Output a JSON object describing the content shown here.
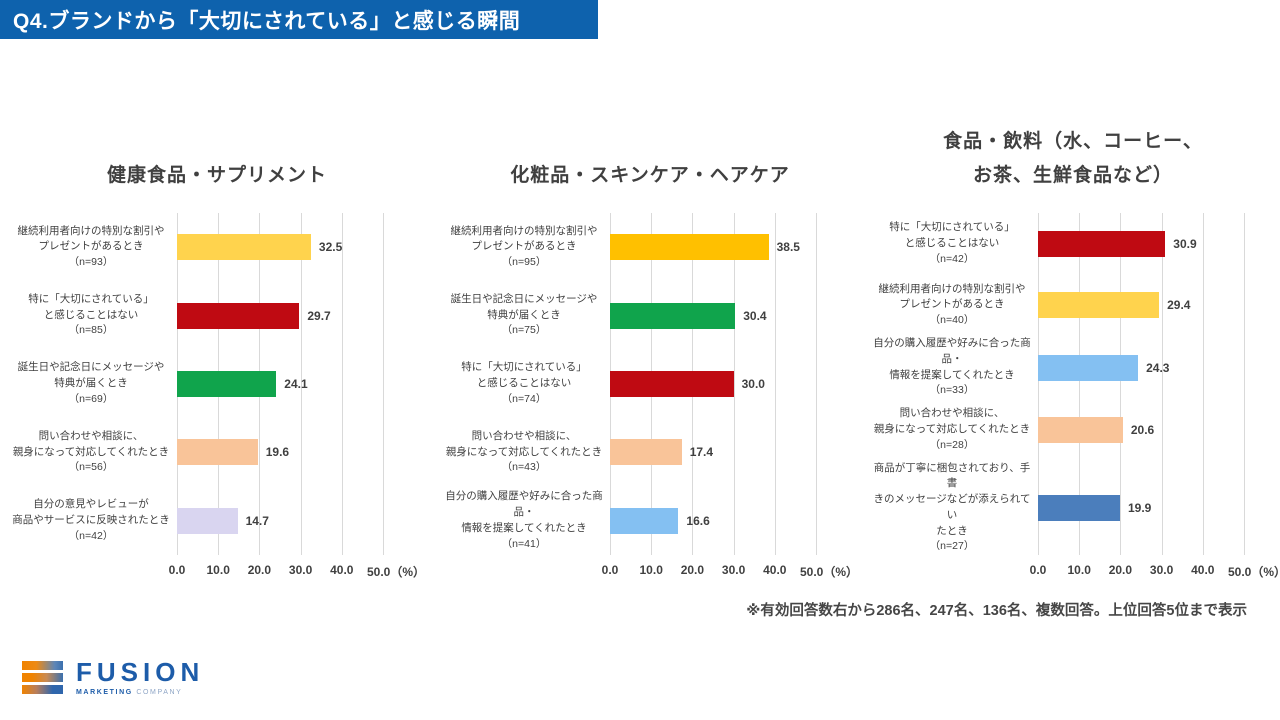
{
  "banner": {
    "title": "Q4.ブランドから「大切にされている」と感じる瞬間",
    "bg": "#0E62AD",
    "text_color": "#FFFFFF"
  },
  "footnote": "※有効回答数右から286名、247名、136名、複数回答。上位回答5位まで表示",
  "logo": {
    "wordmark": "FUSION",
    "tagline_bold": "MARKETING",
    "tagline_light": "COMPANY",
    "brand_blue": "#1D5CA9",
    "brand_orange": "#F08300"
  },
  "colors": {
    "gridline": "#D9D9D9",
    "text": "#404040"
  },
  "chart_data": [
    {
      "type": "bar",
      "orientation": "horizontal",
      "title_lines": [
        "健康食品・サプリメント"
      ],
      "xlim": [
        0,
        50
      ],
      "xticks": [
        "0.0",
        "10.0",
        "20.0",
        "30.0",
        "40.0",
        "50.0（%）"
      ],
      "gridlines": true,
      "bars": [
        {
          "category": "継続利用者向けの特別な割引やプレゼントがあるとき（n=93）",
          "label_lines": [
            "継続利用者向けの特別な割引や",
            "プレゼントがあるとき",
            "（n=93）"
          ],
          "value": 32.5,
          "color": "#FFD34D"
        },
        {
          "category": "特に「大切にされている」と感じることはない（n=85）",
          "label_lines": [
            "特に「大切にされている」",
            "と感じることはない",
            "（n=85）"
          ],
          "value": 29.7,
          "color": "#BF0A12"
        },
        {
          "category": "誕生日や記念日にメッセージや特典が届くとき（n=69）",
          "label_lines": [
            "誕生日や記念日にメッセージや",
            "特典が届くとき",
            "（n=69）"
          ],
          "value": 24.1,
          "color": "#10A44C"
        },
        {
          "category": "問い合わせや相談に、親身になって対応してくれたとき（n=56）",
          "label_lines": [
            "問い合わせや相談に、",
            "親身になって対応してくれたとき",
            "（n=56）"
          ],
          "value": 19.6,
          "color": "#F9C499"
        },
        {
          "category": "自分の意見やレビューが商品やサービスに反映されたとき（n=42）",
          "label_lines": [
            "自分の意見やレビューが",
            "商品やサービスに反映されたとき",
            "（n=42）"
          ],
          "value": 14.7,
          "color": "#D9D5F0"
        }
      ]
    },
    {
      "type": "bar",
      "orientation": "horizontal",
      "title_lines": [
        "化粧品・スキンケア・ヘアケア"
      ],
      "xlim": [
        0,
        50
      ],
      "xticks": [
        "0.0",
        "10.0",
        "20.0",
        "30.0",
        "40.0",
        "50.0（%）"
      ],
      "gridlines": true,
      "bars": [
        {
          "category": "継続利用者向けの特別な割引やプレゼントがあるとき（n=95）",
          "label_lines": [
            "継続利用者向けの特別な割引や",
            "プレゼントがあるとき",
            "（n=95）"
          ],
          "value": 38.5,
          "color": "#FFC000"
        },
        {
          "category": "誕生日や記念日にメッセージや特典が届くとき（n=75）",
          "label_lines": [
            "誕生日や記念日にメッセージや",
            "特典が届くとき",
            "（n=75）"
          ],
          "value": 30.4,
          "color": "#10A44C"
        },
        {
          "category": "特に「大切にされている」と感じることはない（n=74）",
          "label_lines": [
            "特に「大切にされている」",
            "と感じることはない",
            "（n=74）"
          ],
          "value": 30.0,
          "color": "#BF0A12"
        },
        {
          "category": "問い合わせや相談に、親身になって対応してくれたとき（n=43）",
          "label_lines": [
            "問い合わせや相談に、",
            "親身になって対応してくれたとき",
            "（n=43）"
          ],
          "value": 17.4,
          "color": "#F9C499"
        },
        {
          "category": "自分の購入履歴や好みに合った商品・情報を提案してくれたとき（n=41）",
          "label_lines": [
            "自分の購入履歴や好みに合った商",
            "品・",
            "情報を提案してくれたとき",
            "（n=41）"
          ],
          "value": 16.6,
          "color": "#84C0F2"
        }
      ]
    },
    {
      "type": "bar",
      "orientation": "horizontal",
      "title_lines": [
        "食品・飲料（水、コーヒー、",
        "お茶、生鮮食品など）"
      ],
      "xlim": [
        0,
        50
      ],
      "xticks": [
        "0.0",
        "10.0",
        "20.0",
        "30.0",
        "40.0",
        "50.0（%）"
      ],
      "gridlines": true,
      "bars": [
        {
          "category": "特に「大切にされている」と感じることはない（n=42）",
          "label_lines": [
            "特に「大切にされている」",
            "と感じることはない",
            "（n=42）"
          ],
          "value": 30.9,
          "color": "#BF0A12"
        },
        {
          "category": "継続利用者向けの特別な割引やプレゼントがあるとき（n=40）",
          "label_lines": [
            "継続利用者向けの特別な割引や",
            "プレゼントがあるとき",
            "（n=40）"
          ],
          "value": 29.4,
          "color": "#FFD34D"
        },
        {
          "category": "自分の購入履歴や好みに合った商品・情報を提案してくれたとき（n=33）",
          "label_lines": [
            "自分の購入履歴や好みに合った商",
            "品・",
            "情報を提案してくれたとき",
            "（n=33）"
          ],
          "value": 24.3,
          "color": "#84C0F2"
        },
        {
          "category": "問い合わせや相談に、親身になって対応してくれたとき（n=28）",
          "label_lines": [
            "問い合わせや相談に、",
            "親身になって対応してくれたとき",
            "（n=28）"
          ],
          "value": 20.6,
          "color": "#F9C499"
        },
        {
          "category": "商品が丁寧に梱包されており、手書きのメッセージなどが添えられていたとき（n=27）",
          "label_lines": [
            "商品が丁寧に梱包されており、手書",
            "きのメッセージなどが添えられてい",
            "たとき",
            "（n=27）"
          ],
          "value": 19.9,
          "color": "#4B7EBC"
        }
      ]
    }
  ]
}
